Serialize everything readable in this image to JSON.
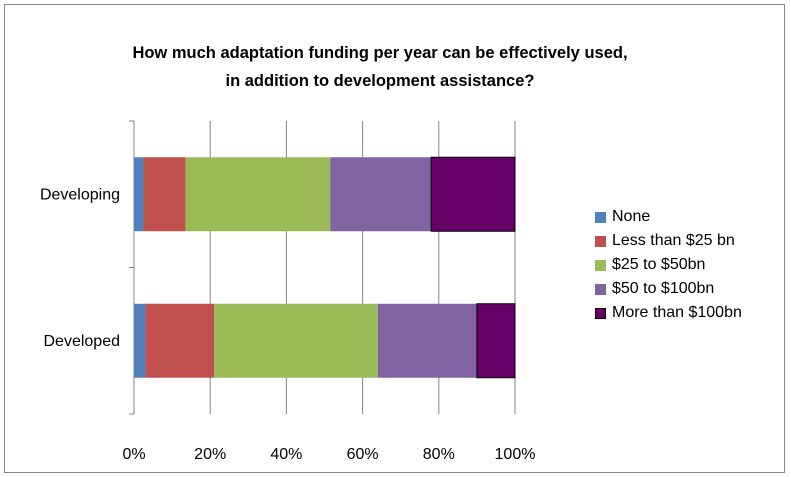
{
  "chart_data": {
    "type": "bar",
    "orientation": "horizontal",
    "stacked": "percent",
    "title_lines": [
      "How much adaptation funding per year can be effectively used,",
      "in addition to development assistance?"
    ],
    "categories": [
      "Developing",
      "Developed"
    ],
    "series": [
      {
        "name": "None",
        "color": "#4F81BD",
        "values": [
          2.5,
          3
        ]
      },
      {
        "name": "Less than $25 bn",
        "color": "#C0504D",
        "values": [
          11,
          18
        ]
      },
      {
        "name": "$25 to $50bn",
        "color": "#9BBB59",
        "values": [
          38,
          43
        ]
      },
      {
        "name": "$50 to $100bn",
        "color": "#8064A2",
        "values": [
          26.5,
          26
        ]
      },
      {
        "name": "More than $100bn",
        "color": "#660066",
        "values": [
          22,
          10
        ]
      }
    ],
    "x_ticks": [
      "0%",
      "20%",
      "40%",
      "60%",
      "80%",
      "100%"
    ],
    "xlim": [
      0,
      100
    ],
    "grid": "vertical",
    "legend_position": "right"
  }
}
